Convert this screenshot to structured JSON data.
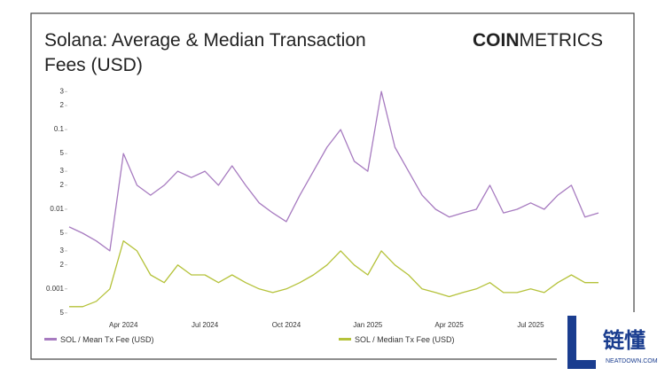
{
  "chart_data": {
    "type": "line",
    "title": [
      "Solana: Average & Median Transaction",
      "Fees (USD)"
    ],
    "categories": [
      null,
      null,
      null,
      null,
      "Apr 2024",
      null,
      null,
      null,
      null,
      null,
      "Jul 2024",
      null,
      null,
      null,
      null,
      null,
      "Oct 2024",
      null,
      null,
      null,
      null,
      null,
      "Jan 2025",
      null,
      null,
      null,
      null,
      null,
      "Apr 2025",
      null,
      null,
      null,
      null,
      null,
      "Jul 2025",
      null,
      null,
      null,
      null,
      null
    ],
    "series": [
      {
        "name": "SOL / Mean Tx Fee (USD)",
        "color": "#a77bc0",
        "values": [
          0.006,
          0.005,
          0.004,
          0.003,
          0.05,
          0.02,
          0.015,
          0.02,
          0.03,
          0.025,
          0.03,
          0.02,
          0.035,
          0.02,
          0.012,
          0.009,
          0.007,
          0.015,
          0.03,
          0.06,
          0.1,
          0.04,
          0.03,
          0.3,
          0.06,
          0.03,
          0.015,
          0.01,
          0.008,
          0.009,
          0.01,
          0.02,
          0.009,
          0.01,
          0.012,
          0.01,
          0.015,
          0.02,
          0.008,
          0.009
        ]
      },
      {
        "name": "SOL / Median Tx Fee (USD)",
        "color": "#b5c23a",
        "values": [
          0.0006,
          0.0006,
          0.0007,
          0.001,
          0.004,
          0.003,
          0.0015,
          0.0012,
          0.002,
          0.0015,
          0.0015,
          0.0012,
          0.0015,
          0.0012,
          0.001,
          0.0009,
          0.001,
          0.0012,
          0.0015,
          0.002,
          0.003,
          0.002,
          0.0015,
          0.003,
          0.002,
          0.0015,
          0.001,
          0.0009,
          0.0008,
          0.0009,
          0.001,
          0.0012,
          0.0009,
          0.0009,
          0.001,
          0.0009,
          0.0012,
          0.0015,
          0.0012,
          0.0012
        ]
      }
    ],
    "ylim": [
      0.00045,
      0.37
    ],
    "log_scale": true,
    "grid": false,
    "legend": "bottom",
    "yticks": [
      {
        "value": 0.0005,
        "label": "5"
      },
      0.001,
      {
        "value": 0.002,
        "label": "2"
      },
      {
        "value": 0.003,
        "label": "3"
      },
      {
        "value": 0.005,
        "label": "5"
      },
      0.01,
      {
        "value": 0.02,
        "label": "2"
      },
      {
        "value": 0.03,
        "label": "3"
      },
      {
        "value": 0.05,
        "label": "5"
      },
      0.1,
      {
        "value": 0.2,
        "label": "2"
      },
      {
        "value": 0.3,
        "label": "3"
      }
    ]
  },
  "logo": {
    "bold": "COIN",
    "light": "METRICS"
  },
  "watermark": {
    "mark": "链懂",
    "site": "NEATDOWN.COM"
  }
}
